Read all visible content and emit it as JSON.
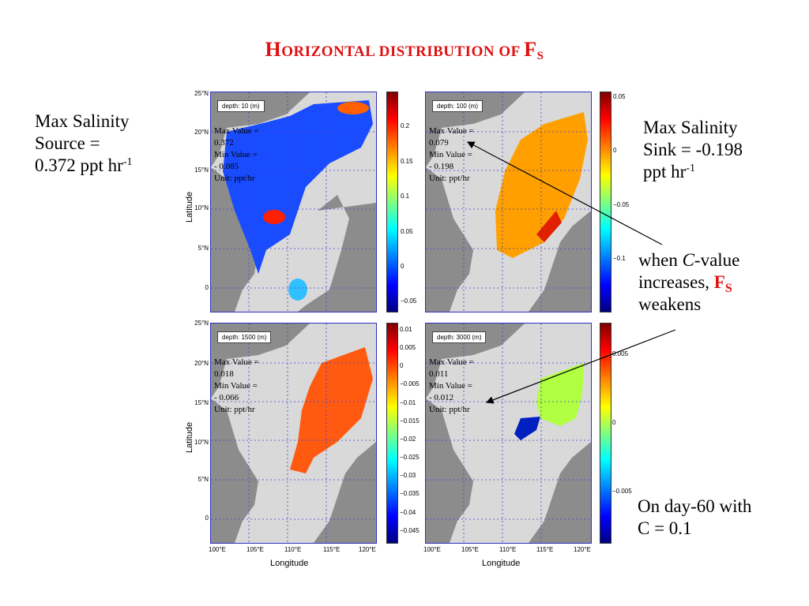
{
  "title": {
    "first": "H",
    "rest": "ORIZONTAL DISTRIBUTION OF ",
    "f": "F",
    "sub": "S"
  },
  "left_text": {
    "l1": "Max Salinity",
    "l2": "Source =",
    "l3": "0.372 ppt hr",
    "sup": "-1"
  },
  "right_top_text": {
    "l1": "Max Salinity",
    "l2": "Sink = -0.198",
    "l3": "ppt hr",
    "sup": "-1"
  },
  "right_mid_text": {
    "l1a": "when ",
    "l1b": "C",
    "l1c": "-value",
    "l2a": "increases, ",
    "l2b": "F",
    "l2c": "S",
    "l3": "weakens"
  },
  "right_bottom_text": {
    "l1": "On day-60 with",
    "l2": "C = 0.1"
  },
  "axis": {
    "ylabel": "Latitude",
    "xlabel": "Longitude",
    "lat_ticks": [
      "25°N",
      "20°N",
      "15°N",
      "10°N",
      "5°N",
      "0"
    ],
    "lon_ticks": [
      "100°E",
      "105°E",
      "110°E",
      "115°E",
      "120°E"
    ]
  },
  "panels": [
    {
      "depth": "depth: 10 (m)",
      "max_label": "Max Value =",
      "max": "0.372",
      "min_label": "Min Value =",
      "min": "- 0.085",
      "unit": "Unit: ppt/hr",
      "cbar_ticks": [
        "0.2",
        "0.15",
        "0.1",
        "0.05",
        "0",
        "−0.05"
      ],
      "main_color": "#1a4cff"
    },
    {
      "depth": "depth: 100 (m)",
      "max_label": "Max Value =",
      "max": "0.079",
      "min_label": "Min Value =",
      "min": "- 0.198",
      "unit": "Unit: ppt/hr",
      "cbar_ticks": [
        "0.05",
        "0",
        "−0.05",
        "−0.1"
      ],
      "main_color": "#ffa000"
    },
    {
      "depth": "depth: 1500 (m)",
      "max_label": "Max Value =",
      "max": "0.018",
      "min_label": "Min Value =",
      "min": "- 0.066",
      "unit": "Unit: ppt/hr",
      "cbar_ticks": [
        "0.01",
        "0.005",
        "0",
        "−0.005",
        "−0.01",
        "−0.015",
        "−0.02",
        "−0.025",
        "−0.03",
        "−0.035",
        "−0.04",
        "−0.045"
      ],
      "main_color": "#ff5a10"
    },
    {
      "depth": "depth: 3000 (m)",
      "max_label": "Max Value =",
      "max": "0.011",
      "min_label": "Min Value =",
      "min": "- 0.012",
      "unit": "Unit: ppt/hr",
      "cbar_ticks": [
        "0.005",
        "0",
        "−0.005"
      ],
      "main_color": "#b0ff40"
    }
  ],
  "colors": {
    "title": "#e01010",
    "land": "#8c8c8c",
    "shelf": "#d9d9d9",
    "frame": "#3030c0"
  }
}
